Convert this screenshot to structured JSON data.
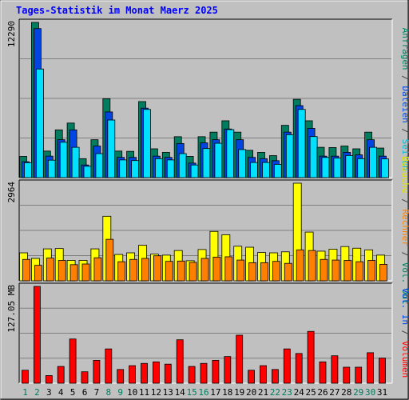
{
  "chart_data": [
    {
      "type": "bar",
      "title": "Tages-Statistik im Monat Maerz 2025",
      "panel": "top",
      "categories": [
        "1",
        "2",
        "3",
        "4",
        "5",
        "6",
        "7",
        "8",
        "9",
        "10",
        "11",
        "12",
        "13",
        "14",
        "15",
        "16",
        "17",
        "18",
        "19",
        "20",
        "21",
        "22",
        "23",
        "24",
        "25",
        "26",
        "27",
        "28",
        "29",
        "30",
        "31"
      ],
      "ylabel_value": "12290",
      "ylim": [
        0,
        12290
      ],
      "series": [
        {
          "name": "Anfragen",
          "color": "#007d5f",
          "values": [
            1680,
            12290,
            2100,
            3780,
            4320,
            1500,
            3000,
            6250,
            2100,
            2080,
            6020,
            2280,
            2000,
            3240,
            1680,
            3240,
            3600,
            4500,
            3600,
            2160,
            2000,
            1740,
            4140,
            6200,
            4500,
            2400,
            2380,
            2500,
            2280,
            3600,
            2340
          ]
        },
        {
          "name": "Dateien",
          "color": "#0044e2",
          "values": [
            1260,
            11800,
            1700,
            3000,
            3780,
            1000,
            2500,
            5200,
            1600,
            1600,
            5500,
            1700,
            1600,
            2700,
            1150,
            2750,
            3000,
            3850,
            3000,
            1600,
            1500,
            1340,
            3600,
            5700,
            3900,
            1700,
            1700,
            2000,
            1800,
            3000,
            1700
          ]
        },
        {
          "name": "Seiten",
          "color": "#00e0ff",
          "values": [
            1180,
            8600,
            1380,
            2800,
            2400,
            900,
            1900,
            4560,
            1400,
            1350,
            5400,
            1500,
            1400,
            1900,
            1000,
            2300,
            2720,
            3800,
            2220,
            1200,
            1200,
            1050,
            3400,
            5400,
            3250,
            1600,
            1550,
            1750,
            1500,
            2400,
            1480
          ]
        }
      ]
    },
    {
      "type": "bar",
      "panel": "middle",
      "categories": [
        "1",
        "2",
        "3",
        "4",
        "5",
        "6",
        "7",
        "8",
        "9",
        "10",
        "11",
        "12",
        "13",
        "14",
        "15",
        "16",
        "17",
        "18",
        "19",
        "20",
        "21",
        "22",
        "23",
        "24",
        "25",
        "26",
        "27",
        "28",
        "29",
        "30",
        "31"
      ],
      "ylabel_value": "2964",
      "ylim": [
        0,
        2964
      ],
      "series": [
        {
          "name": "Besuche",
          "color": "#ffff00",
          "values": [
            850,
            680,
            970,
            980,
            620,
            620,
            970,
            1960,
            800,
            850,
            1080,
            810,
            780,
            920,
            610,
            950,
            1500,
            1400,
            1050,
            1020,
            860,
            850,
            880,
            2964,
            1480,
            900,
            960,
            1040,
            990,
            940,
            780
          ]
        },
        {
          "name": "Rechner",
          "color": "#ff8000",
          "values": [
            650,
            470,
            690,
            620,
            490,
            510,
            700,
            1260,
            580,
            650,
            680,
            760,
            590,
            600,
            560,
            680,
            720,
            730,
            630,
            550,
            550,
            590,
            530,
            940,
            920,
            650,
            630,
            620,
            580,
            620,
            500
          ]
        }
      ]
    },
    {
      "type": "bar",
      "panel": "bottom",
      "categories": [
        "1",
        "2",
        "3",
        "4",
        "5",
        "6",
        "7",
        "8",
        "9",
        "10",
        "11",
        "12",
        "13",
        "14",
        "15",
        "16",
        "17",
        "18",
        "19",
        "20",
        "21",
        "22",
        "23",
        "24",
        "25",
        "26",
        "27",
        "28",
        "29",
        "30",
        "31"
      ],
      "ylabel_value": "127.05 MB",
      "ylim": [
        0,
        127.05
      ],
      "series": [
        {
          "name": "Volumen",
          "color": "#ff0000",
          "values": [
            17,
            127.05,
            10,
            22,
            58,
            15,
            30,
            45,
            18,
            23,
            26,
            28,
            25,
            57,
            22,
            26,
            30,
            35,
            63,
            17,
            23,
            18,
            45,
            39,
            68,
            28,
            36,
            21,
            21,
            40,
            33
          ]
        }
      ]
    }
  ],
  "right_legend": [
    {
      "panel": "top",
      "items": [
        {
          "text": "Anfragen",
          "color": "#007d5f"
        },
        {
          "text": " / ",
          "color": "#404040"
        },
        {
          "text": "Dateien",
          "color": "#0044e2"
        },
        {
          "text": " / ",
          "color": "#404040"
        },
        {
          "text": "Seiten",
          "color": "#00b8d8"
        }
      ]
    },
    {
      "panel": "middle",
      "items": [
        {
          "text": "Besuche",
          "color": "#e5e500"
        },
        {
          "text": " / ",
          "color": "#404040"
        },
        {
          "text": "Rechner",
          "color": "#ff8000"
        },
        {
          "text": " / ",
          "color": "#404040"
        },
        {
          "text": "Vol. Out",
          "color": "#007d5f"
        }
      ]
    },
    {
      "panel": "bottom",
      "items": [
        {
          "text": "Vol. In",
          "color": "#0044e2"
        },
        {
          "text": " / ",
          "color": "#404040"
        },
        {
          "text": "Volumen",
          "color": "#ff0000"
        }
      ]
    }
  ],
  "weekend_days": [
    "1",
    "2",
    "8",
    "9",
    "15",
    "16",
    "22",
    "23",
    "29",
    "30"
  ],
  "colors": {
    "title": "#0000ff",
    "weekday_label": "#000000",
    "weekend_label": "#007d5f",
    "plot_bg": "#c0c0c0",
    "grid": "#808080"
  }
}
